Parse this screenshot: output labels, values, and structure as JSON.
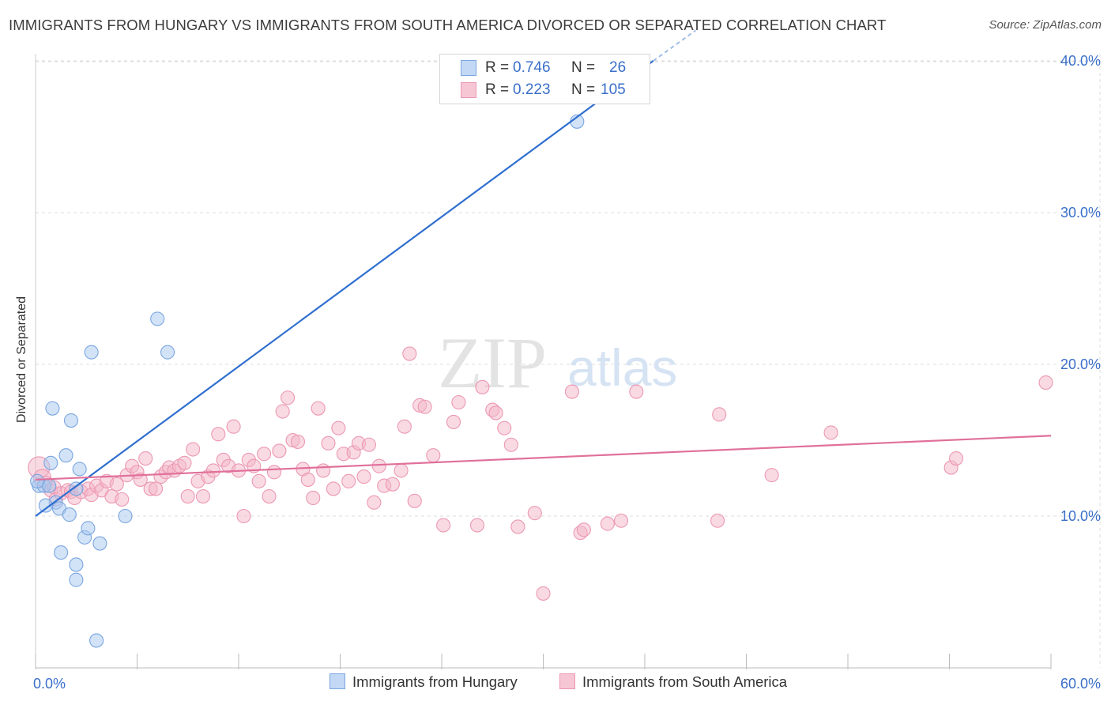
{
  "title": "IMMIGRANTS FROM HUNGARY VS IMMIGRANTS FROM SOUTH AMERICA DIVORCED OR SEPARATED CORRELATION CHART",
  "source": "Source: ZipAtlas.com",
  "watermark": {
    "zip": "ZIP",
    "atlas": "atlas"
  },
  "stats": [
    {
      "r_label": "R =",
      "r_value": "0.746",
      "n_label": "N =",
      "n_value": "26"
    },
    {
      "r_label": "R =",
      "r_value": "0.223",
      "n_label": "N =",
      "n_value": "105"
    }
  ],
  "legend": [
    "Immigrants from Hungary",
    "Immigrants from South America"
  ],
  "colors": {
    "hungary_fill": "#a8c8f0",
    "hungary_stroke": "#7aa6e0",
    "hungary_line": "#2f6fcf",
    "sa_fill": "#f4b6c8",
    "sa_stroke": "#ec98b3",
    "sa_line": "#e0709a",
    "axis_text": "#3a6fc9",
    "grid": "#dddddd"
  },
  "chart_data": {
    "type": "scatter",
    "title": "IMMIGRANTS FROM HUNGARY VS IMMIGRANTS FROM SOUTH AMERICA DIVORCED OR SEPARATED CORRELATION CHART",
    "xlabel": "",
    "ylabel": "Divorced or Separated",
    "xlim": [
      0,
      60
    ],
    "ylim": [
      0,
      41
    ],
    "x_tick_labels": [
      {
        "value": 0,
        "label": "0.0%"
      },
      {
        "value": 60,
        "label": "60.0%"
      }
    ],
    "y_ticks": [
      {
        "value": 10,
        "label": "10.0%"
      },
      {
        "value": 20,
        "label": "20.0%"
      },
      {
        "value": 30,
        "label": "30.0%"
      },
      {
        "value": 40,
        "label": "40.0%"
      }
    ],
    "series": [
      {
        "name": "Immigrants from Hungary",
        "r": 0.746,
        "n": 26,
        "trend": {
          "x0": 0,
          "y0": 10.0,
          "x1": 36.5,
          "y1": 40.0,
          "dash_x1": 39.0,
          "dash_y1": 42.0
        },
        "points": [
          {
            "x": 0.2,
            "y": 12.0,
            "s": 1
          },
          {
            "x": 0.5,
            "y": 12.0,
            "s": 1
          },
          {
            "x": 0.8,
            "y": 12.0,
            "s": 1
          },
          {
            "x": 0.9,
            "y": 13.5,
            "s": 1
          },
          {
            "x": 1.0,
            "y": 17.1,
            "s": 1
          },
          {
            "x": 1.2,
            "y": 10.9,
            "s": 1
          },
          {
            "x": 0.6,
            "y": 10.7,
            "s": 1
          },
          {
            "x": 1.4,
            "y": 10.5,
            "s": 1
          },
          {
            "x": 1.8,
            "y": 14.0,
            "s": 1
          },
          {
            "x": 2.0,
            "y": 10.1,
            "s": 1
          },
          {
            "x": 2.1,
            "y": 16.3,
            "s": 1
          },
          {
            "x": 2.4,
            "y": 11.8,
            "s": 1
          },
          {
            "x": 2.6,
            "y": 13.1,
            "s": 1
          },
          {
            "x": 1.5,
            "y": 7.6,
            "s": 1
          },
          {
            "x": 2.4,
            "y": 6.8,
            "s": 1
          },
          {
            "x": 2.4,
            "y": 5.8,
            "s": 1
          },
          {
            "x": 2.9,
            "y": 8.6,
            "s": 1
          },
          {
            "x": 3.1,
            "y": 9.2,
            "s": 1
          },
          {
            "x": 3.3,
            "y": 20.8,
            "s": 1
          },
          {
            "x": 3.8,
            "y": 8.2,
            "s": 1
          },
          {
            "x": 3.6,
            "y": 1.8,
            "s": 1
          },
          {
            "x": 5.3,
            "y": 10.0,
            "s": 1
          },
          {
            "x": 7.2,
            "y": 23.0,
            "s": 1
          },
          {
            "x": 7.8,
            "y": 20.8,
            "s": 1
          },
          {
            "x": 32.0,
            "y": 36.0,
            "s": 1
          },
          {
            "x": 0.1,
            "y": 12.3,
            "s": 1
          }
        ]
      },
      {
        "name": "Immigrants from South America",
        "r": 0.223,
        "n": 105,
        "trend": {
          "x0": 0,
          "y0": 12.4,
          "x1": 60,
          "y1": 15.3
        },
        "points": [
          {
            "x": 0.2,
            "y": 13.2,
            "s": 1.6
          },
          {
            "x": 0.4,
            "y": 12.5,
            "s": 1.3
          },
          {
            "x": 0.6,
            "y": 12.2,
            "s": 1
          },
          {
            "x": 0.9,
            "y": 11.7,
            "s": 1
          },
          {
            "x": 1.1,
            "y": 11.9,
            "s": 1
          },
          {
            "x": 1.2,
            "y": 11.1,
            "s": 1
          },
          {
            "x": 1.5,
            "y": 11.5,
            "s": 1
          },
          {
            "x": 1.9,
            "y": 11.7,
            "s": 1
          },
          {
            "x": 2.1,
            "y": 11.6,
            "s": 1
          },
          {
            "x": 2.3,
            "y": 11.2,
            "s": 1
          },
          {
            "x": 2.7,
            "y": 11.6,
            "s": 1
          },
          {
            "x": 3.1,
            "y": 11.8,
            "s": 1
          },
          {
            "x": 3.3,
            "y": 11.4,
            "s": 1
          },
          {
            "x": 3.6,
            "y": 12.0,
            "s": 1
          },
          {
            "x": 3.9,
            "y": 11.7,
            "s": 1
          },
          {
            "x": 4.2,
            "y": 12.3,
            "s": 1
          },
          {
            "x": 4.5,
            "y": 11.3,
            "s": 1
          },
          {
            "x": 4.8,
            "y": 12.1,
            "s": 1
          },
          {
            "x": 5.1,
            "y": 11.1,
            "s": 1
          },
          {
            "x": 5.4,
            "y": 12.7,
            "s": 1
          },
          {
            "x": 5.7,
            "y": 13.3,
            "s": 1
          },
          {
            "x": 6.0,
            "y": 12.9,
            "s": 1
          },
          {
            "x": 6.2,
            "y": 12.4,
            "s": 1
          },
          {
            "x": 6.5,
            "y": 13.8,
            "s": 1
          },
          {
            "x": 6.8,
            "y": 11.8,
            "s": 1
          },
          {
            "x": 7.1,
            "y": 11.8,
            "s": 1
          },
          {
            "x": 7.4,
            "y": 12.6,
            "s": 1
          },
          {
            "x": 7.7,
            "y": 12.9,
            "s": 1
          },
          {
            "x": 7.9,
            "y": 13.2,
            "s": 1
          },
          {
            "x": 8.2,
            "y": 13.0,
            "s": 1
          },
          {
            "x": 8.5,
            "y": 13.3,
            "s": 1
          },
          {
            "x": 8.8,
            "y": 13.5,
            "s": 1
          },
          {
            "x": 9.0,
            "y": 11.3,
            "s": 1
          },
          {
            "x": 9.3,
            "y": 14.4,
            "s": 1
          },
          {
            "x": 9.6,
            "y": 12.3,
            "s": 1
          },
          {
            "x": 9.9,
            "y": 11.3,
            "s": 1
          },
          {
            "x": 10.2,
            "y": 12.6,
            "s": 1
          },
          {
            "x": 10.5,
            "y": 13.0,
            "s": 1
          },
          {
            "x": 10.8,
            "y": 15.4,
            "s": 1
          },
          {
            "x": 11.1,
            "y": 13.7,
            "s": 1
          },
          {
            "x": 11.4,
            "y": 13.3,
            "s": 1
          },
          {
            "x": 11.7,
            "y": 15.9,
            "s": 1
          },
          {
            "x": 12.0,
            "y": 13.0,
            "s": 1
          },
          {
            "x": 12.3,
            "y": 10.0,
            "s": 1
          },
          {
            "x": 12.6,
            "y": 13.7,
            "s": 1
          },
          {
            "x": 12.9,
            "y": 13.3,
            "s": 1
          },
          {
            "x": 13.2,
            "y": 12.3,
            "s": 1
          },
          {
            "x": 13.5,
            "y": 14.1,
            "s": 1
          },
          {
            "x": 13.8,
            "y": 11.3,
            "s": 1
          },
          {
            "x": 14.1,
            "y": 12.9,
            "s": 1
          },
          {
            "x": 14.4,
            "y": 14.3,
            "s": 1
          },
          {
            "x": 14.6,
            "y": 16.9,
            "s": 1
          },
          {
            "x": 14.9,
            "y": 17.8,
            "s": 1
          },
          {
            "x": 15.2,
            "y": 15.0,
            "s": 1
          },
          {
            "x": 15.5,
            "y": 14.9,
            "s": 1
          },
          {
            "x": 15.8,
            "y": 13.1,
            "s": 1
          },
          {
            "x": 16.1,
            "y": 12.4,
            "s": 1
          },
          {
            "x": 16.4,
            "y": 11.2,
            "s": 1
          },
          {
            "x": 16.7,
            "y": 17.1,
            "s": 1
          },
          {
            "x": 17.0,
            "y": 13.0,
            "s": 1
          },
          {
            "x": 17.3,
            "y": 14.8,
            "s": 1
          },
          {
            "x": 17.6,
            "y": 11.8,
            "s": 1
          },
          {
            "x": 17.9,
            "y": 15.8,
            "s": 1
          },
          {
            "x": 18.2,
            "y": 14.1,
            "s": 1
          },
          {
            "x": 18.5,
            "y": 12.3,
            "s": 1
          },
          {
            "x": 18.8,
            "y": 14.2,
            "s": 1
          },
          {
            "x": 19.1,
            "y": 14.8,
            "s": 1
          },
          {
            "x": 19.4,
            "y": 12.6,
            "s": 1
          },
          {
            "x": 19.7,
            "y": 14.7,
            "s": 1
          },
          {
            "x": 20.0,
            "y": 10.9,
            "s": 1
          },
          {
            "x": 20.3,
            "y": 13.3,
            "s": 1
          },
          {
            "x": 20.6,
            "y": 12.0,
            "s": 1
          },
          {
            "x": 21.1,
            "y": 12.1,
            "s": 1
          },
          {
            "x": 21.6,
            "y": 13.0,
            "s": 1
          },
          {
            "x": 21.8,
            "y": 15.9,
            "s": 1
          },
          {
            "x": 22.1,
            "y": 20.7,
            "s": 1
          },
          {
            "x": 22.4,
            "y": 11.0,
            "s": 1
          },
          {
            "x": 22.7,
            "y": 17.3,
            "s": 1
          },
          {
            "x": 23.0,
            "y": 17.2,
            "s": 1
          },
          {
            "x": 23.5,
            "y": 14.0,
            "s": 1
          },
          {
            "x": 24.1,
            "y": 9.4,
            "s": 1
          },
          {
            "x": 24.7,
            "y": 16.2,
            "s": 1
          },
          {
            "x": 25.0,
            "y": 17.5,
            "s": 1
          },
          {
            "x": 26.1,
            "y": 9.4,
            "s": 1
          },
          {
            "x": 26.4,
            "y": 18.5,
            "s": 1
          },
          {
            "x": 27.0,
            "y": 17.0,
            "s": 1
          },
          {
            "x": 27.2,
            "y": 16.8,
            "s": 1
          },
          {
            "x": 27.7,
            "y": 15.8,
            "s": 1
          },
          {
            "x": 28.1,
            "y": 14.7,
            "s": 1
          },
          {
            "x": 28.5,
            "y": 9.3,
            "s": 1
          },
          {
            "x": 29.5,
            "y": 10.2,
            "s": 1
          },
          {
            "x": 30.0,
            "y": 4.9,
            "s": 1
          },
          {
            "x": 31.7,
            "y": 18.2,
            "s": 1
          },
          {
            "x": 32.2,
            "y": 8.9,
            "s": 1
          },
          {
            "x": 32.4,
            "y": 9.1,
            "s": 1
          },
          {
            "x": 33.8,
            "y": 9.5,
            "s": 1
          },
          {
            "x": 34.6,
            "y": 9.7,
            "s": 1
          },
          {
            "x": 35.5,
            "y": 18.2,
            "s": 1
          },
          {
            "x": 40.3,
            "y": 9.7,
            "s": 1
          },
          {
            "x": 40.4,
            "y": 16.7,
            "s": 1
          },
          {
            "x": 43.5,
            "y": 12.7,
            "s": 1
          },
          {
            "x": 47.0,
            "y": 15.5,
            "s": 1
          },
          {
            "x": 54.1,
            "y": 13.2,
            "s": 1
          },
          {
            "x": 54.4,
            "y": 13.8,
            "s": 1
          },
          {
            "x": 59.7,
            "y": 18.8,
            "s": 1
          }
        ]
      }
    ]
  }
}
